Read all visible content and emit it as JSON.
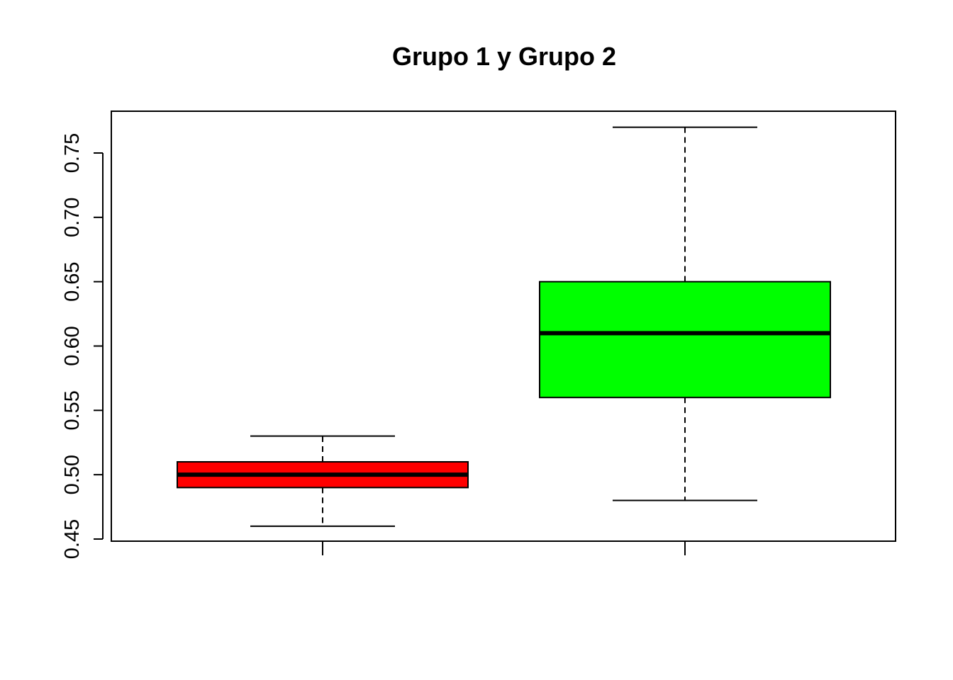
{
  "chart_data": {
    "type": "box",
    "title": "Grupo 1 y Grupo 2",
    "xlabel": "",
    "ylabel": "",
    "ylim": [
      0.45,
      0.775
    ],
    "yticks": [
      "0.45",
      "0.50",
      "0.55",
      "0.60",
      "0.65",
      "0.70",
      "0.75"
    ],
    "grid": false,
    "legend": "none",
    "series": [
      {
        "color": "#ff0000",
        "min": 0.46,
        "q1": 0.49,
        "median": 0.5,
        "q3": 0.51,
        "max": 0.53
      },
      {
        "color": "#00ff00",
        "min": 0.48,
        "q1": 0.56,
        "median": 0.61,
        "q3": 0.65,
        "max": 0.77
      }
    ]
  }
}
